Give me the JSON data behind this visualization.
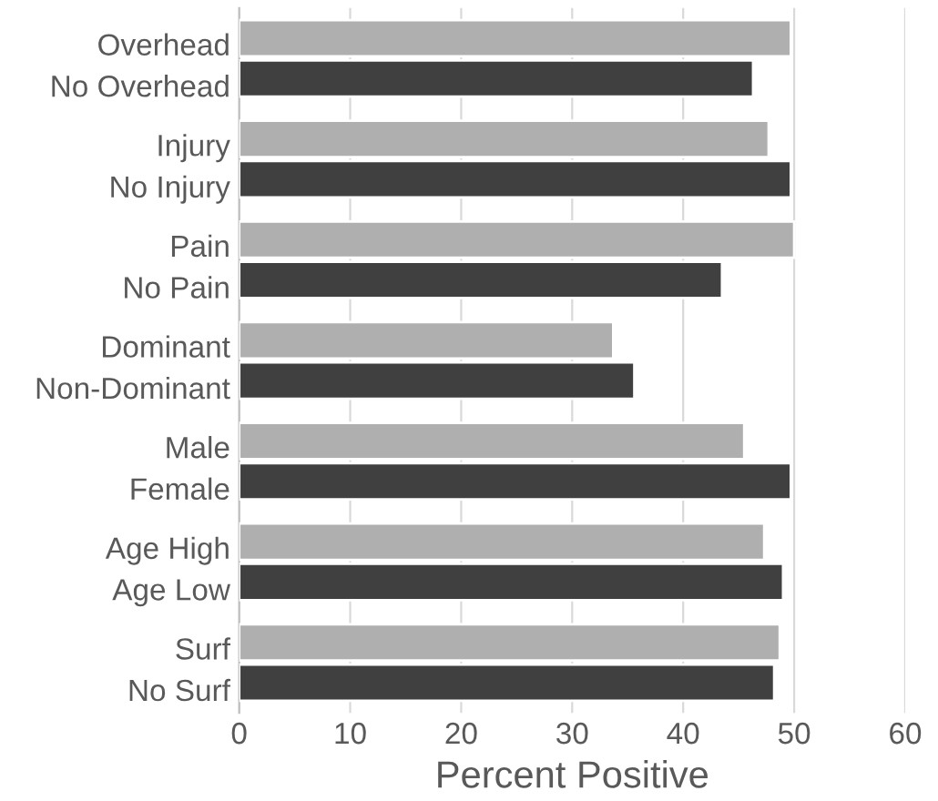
{
  "chart_data": {
    "type": "bar",
    "orientation": "horizontal",
    "xlabel": "Percent Positive",
    "categories": [
      "Overhead\nNo Overhead",
      "Injury\nNo Injury",
      "Pain\nNo Pain",
      "Dominant\nNon-Dominant",
      "Male\nFemale",
      "Age High\nAge Low",
      "Surf\nNo Surf"
    ],
    "series": [
      {
        "color": "#afafaf",
        "values": [
          49.7,
          47.7,
          50.0,
          33.7,
          45.5,
          47.3,
          48.7
        ]
      },
      {
        "color": "#404040",
        "values": [
          46.3,
          49.7,
          43.5,
          35.6,
          49.7,
          49.0,
          48.2
        ]
      }
    ],
    "xlim": [
      0,
      60
    ],
    "xticks": [
      0,
      10,
      20,
      30,
      40,
      50,
      60
    ],
    "grid": "x",
    "legend": false
  }
}
